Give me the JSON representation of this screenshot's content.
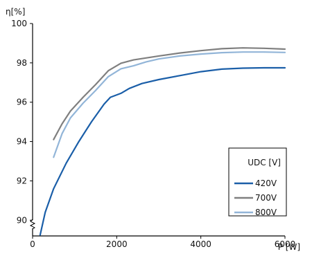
{
  "chart_data": {
    "type": "line",
    "ylabel": "η[%]",
    "xlabel": "P [W]",
    "xlim": [
      0,
      6000
    ],
    "ylim": [
      89.2,
      100
    ],
    "x_ticks": [
      0,
      2000,
      4000,
      6000
    ],
    "y_ticks": [
      90,
      92,
      94,
      96,
      98,
      100
    ],
    "y_axis_break": true,
    "grid": false,
    "legend": {
      "title": "UDC [V]",
      "position": "bottom-right"
    },
    "series": [
      {
        "name": "420V",
        "color": "#1a5ea8",
        "points": [
          [
            180,
            89.25
          ],
          [
            300,
            90.4
          ],
          [
            500,
            91.6
          ],
          [
            800,
            92.9
          ],
          [
            1100,
            94.0
          ],
          [
            1400,
            95.0
          ],
          [
            1700,
            95.9
          ],
          [
            1850,
            96.25
          ],
          [
            2100,
            96.45
          ],
          [
            2300,
            96.7
          ],
          [
            2600,
            96.95
          ],
          [
            3000,
            97.15
          ],
          [
            3500,
            97.35
          ],
          [
            4000,
            97.55
          ],
          [
            4500,
            97.68
          ],
          [
            5000,
            97.73
          ],
          [
            5500,
            97.75
          ],
          [
            6000,
            97.75
          ]
        ]
      },
      {
        "name": "700V",
        "color": "#7f7f7f",
        "points": [
          [
            500,
            94.1
          ],
          [
            700,
            94.9
          ],
          [
            900,
            95.55
          ],
          [
            1200,
            96.25
          ],
          [
            1500,
            96.9
          ],
          [
            1800,
            97.6
          ],
          [
            2100,
            97.98
          ],
          [
            2400,
            98.15
          ],
          [
            3000,
            98.35
          ],
          [
            3500,
            98.5
          ],
          [
            4000,
            98.62
          ],
          [
            4500,
            98.72
          ],
          [
            5000,
            98.76
          ],
          [
            5500,
            98.74
          ],
          [
            6000,
            98.7
          ]
        ]
      },
      {
        "name": "800V",
        "color": "#92b5d8",
        "points": [
          [
            500,
            93.2
          ],
          [
            700,
            94.4
          ],
          [
            900,
            95.2
          ],
          [
            1200,
            95.95
          ],
          [
            1500,
            96.6
          ],
          [
            1800,
            97.3
          ],
          [
            2100,
            97.7
          ],
          [
            2400,
            97.85
          ],
          [
            2700,
            98.05
          ],
          [
            3000,
            98.2
          ],
          [
            3500,
            98.35
          ],
          [
            4000,
            98.45
          ],
          [
            4500,
            98.52
          ],
          [
            5000,
            98.55
          ],
          [
            5500,
            98.55
          ],
          [
            6000,
            98.53
          ]
        ]
      }
    ]
  }
}
